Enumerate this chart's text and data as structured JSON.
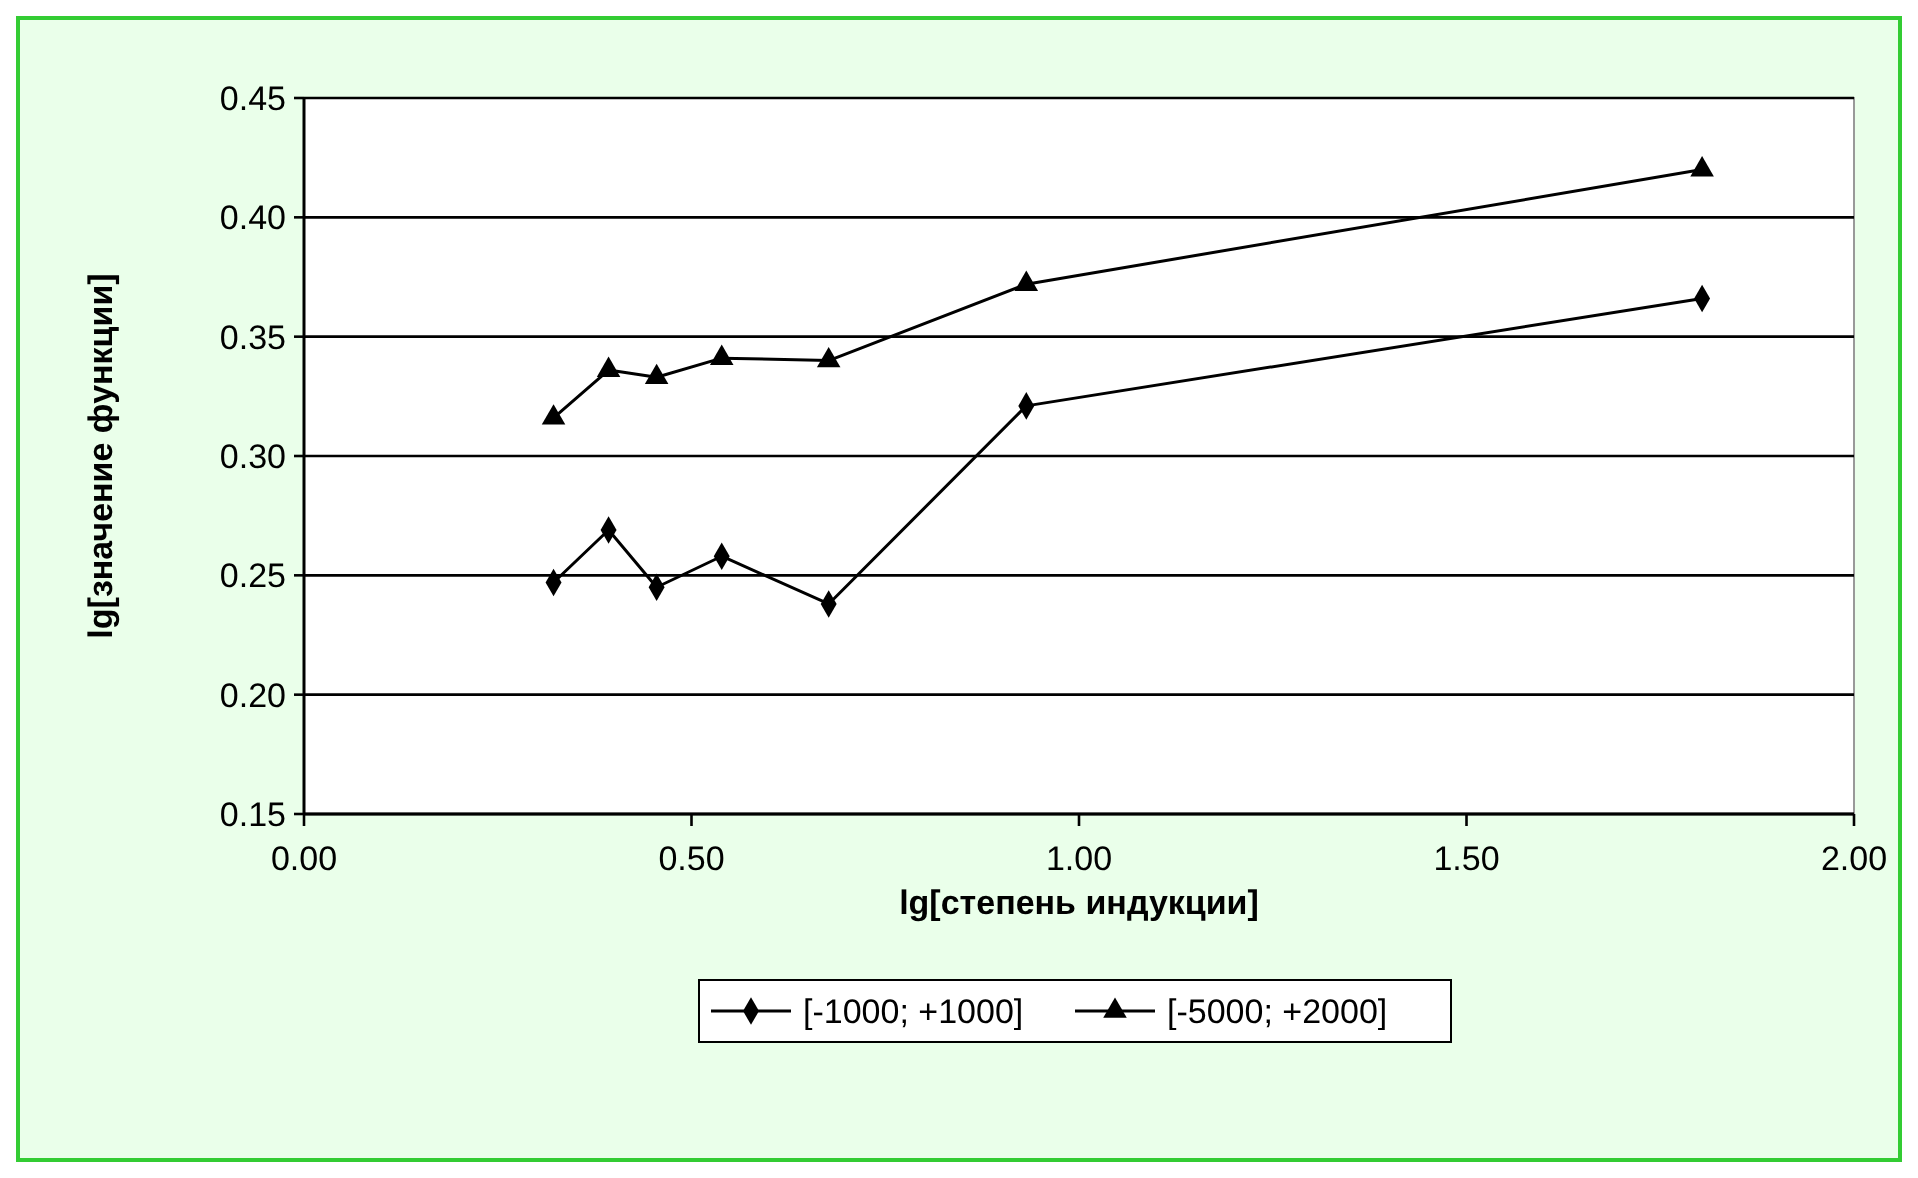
{
  "chart_data": {
    "type": "line",
    "xlabel": "lg[степень индукции]",
    "ylabel": "lg[значение функции]",
    "xlim": [
      0,
      2
    ],
    "xticks": [
      {
        "value": 0,
        "label": "0.00"
      },
      {
        "value": 0.5,
        "label": "0.50"
      },
      {
        "value": 1,
        "label": "1.00"
      },
      {
        "value": 1.5,
        "label": "1.50"
      },
      {
        "value": 2,
        "label": "2.00"
      }
    ],
    "ylim": [
      0.15,
      0.45
    ],
    "yticks": [
      {
        "value": 0.15,
        "label": "0.15"
      },
      {
        "value": 0.2,
        "label": "0.20"
      },
      {
        "value": 0.25,
        "label": "0.25"
      },
      {
        "value": 0.3,
        "label": "0.30"
      },
      {
        "value": 0.35,
        "label": "0.35"
      },
      {
        "value": 0.4,
        "label": "0.40"
      },
      {
        "value": 0.45,
        "label": "0.45"
      }
    ],
    "grid": "y",
    "legend": "bottom",
    "line_style": "solid",
    "series": [
      {
        "name": "[-1000; +1000]",
        "color": "#000000",
        "marker": "diamond",
        "x": [
          0.322,
          0.393,
          0.455,
          0.539,
          0.677,
          0.932,
          1.804
        ],
        "values": [
          0.247,
          0.269,
          0.245,
          0.258,
          0.238,
          0.321,
          0.366
        ]
      },
      {
        "name": "[-5000; +2000]",
        "color": "#000000",
        "marker": "triangle",
        "x": [
          0.322,
          0.393,
          0.455,
          0.539,
          0.677,
          0.932,
          1.804
        ],
        "values": [
          0.316,
          0.336,
          0.333,
          0.341,
          0.34,
          0.372,
          0.42
        ]
      }
    ]
  }
}
